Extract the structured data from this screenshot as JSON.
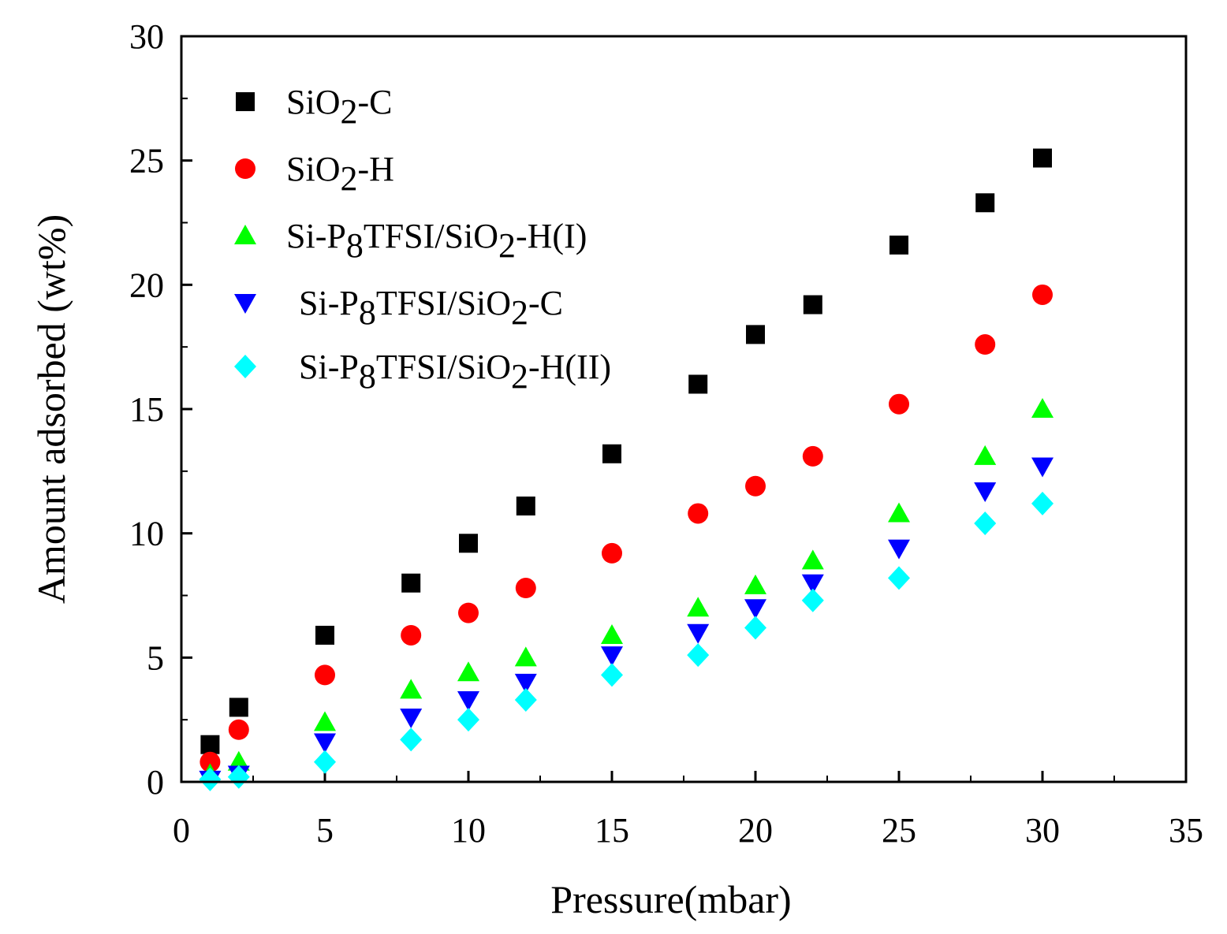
{
  "chart_data": {
    "type": "scatter",
    "title": "",
    "xlabel": "Pressure(mbar)",
    "ylabel": "Amount adsorbed (wt%)",
    "xlim": [
      0,
      35
    ],
    "ylim": [
      0,
      30
    ],
    "xticks": [
      0,
      5,
      10,
      15,
      20,
      25,
      30,
      35
    ],
    "yticks": [
      0,
      5,
      10,
      15,
      20,
      25,
      30
    ],
    "grid": false,
    "legend_position": "top-left",
    "series": [
      {
        "name": "SiO2-C",
        "legend_parts": [
          {
            "t": "SiO"
          },
          {
            "t": "2",
            "sub": true
          },
          {
            "t": "-C"
          }
        ],
        "marker": "square",
        "color": "#000000",
        "x": [
          1,
          2,
          5,
          8,
          10,
          12,
          15,
          18,
          20,
          22,
          25,
          28,
          30
        ],
        "y": [
          1.5,
          3.0,
          5.9,
          8.0,
          9.6,
          11.1,
          13.2,
          16.0,
          18.0,
          19.2,
          21.6,
          23.3,
          25.1
        ]
      },
      {
        "name": "SiO2-H",
        "legend_parts": [
          {
            "t": "SiO"
          },
          {
            "t": "2",
            "sub": true
          },
          {
            "t": "-H"
          }
        ],
        "marker": "circle",
        "color": "#ff0000",
        "x": [
          1,
          2,
          5,
          8,
          10,
          12,
          15,
          18,
          20,
          22,
          25,
          28,
          30
        ],
        "y": [
          0.8,
          2.1,
          4.3,
          5.9,
          6.8,
          7.8,
          9.2,
          10.8,
          11.9,
          13.1,
          15.2,
          17.6,
          19.6
        ]
      },
      {
        "name": "Si-P8TFSI/SiO2-H(I)",
        "legend_parts": [
          {
            "t": "Si-P"
          },
          {
            "t": "8",
            "sub": true
          },
          {
            "t": "TFSI/SiO"
          },
          {
            "t": "2",
            "sub": true
          },
          {
            "t": "-H(I)"
          }
        ],
        "marker": "triangle-up",
        "color": "#00ff00",
        "x": [
          1,
          2,
          5,
          8,
          10,
          12,
          15,
          18,
          20,
          22,
          25,
          28,
          30
        ],
        "y": [
          0.3,
          0.8,
          2.4,
          3.7,
          4.4,
          5.0,
          5.9,
          7.0,
          7.9,
          8.9,
          10.8,
          13.1,
          15.0
        ]
      },
      {
        "name": "Si-P8TFSI/SiO2-C",
        "legend_parts": [
          {
            "t": "Si-P"
          },
          {
            "t": "8",
            "sub": true
          },
          {
            "t": "TFSI/SiO"
          },
          {
            "t": "2",
            "sub": true
          },
          {
            "t": "-C"
          }
        ],
        "marker": "triangle-down",
        "color": "#0000ff",
        "x": [
          1,
          2,
          5,
          8,
          10,
          12,
          15,
          18,
          20,
          22,
          25,
          28,
          30
        ],
        "y": [
          0.1,
          0.3,
          1.6,
          2.6,
          3.3,
          4.0,
          5.1,
          6.0,
          7.0,
          8.0,
          9.4,
          11.7,
          12.7
        ]
      },
      {
        "name": "Si-P8TFSI/SiO2-H(II)",
        "legend_parts": [
          {
            "t": "Si-P"
          },
          {
            "t": "8",
            "sub": true
          },
          {
            "t": "TFSI/SiO"
          },
          {
            "t": "2",
            "sub": true
          },
          {
            "t": "-H(II)"
          }
        ],
        "marker": "diamond",
        "color": "#00ffff",
        "x": [
          1,
          2,
          5,
          8,
          10,
          12,
          15,
          18,
          20,
          22,
          25,
          28,
          30
        ],
        "y": [
          0.1,
          0.2,
          0.8,
          1.7,
          2.5,
          3.3,
          4.3,
          5.1,
          6.2,
          7.3,
          8.2,
          10.4,
          11.2
        ]
      }
    ]
  }
}
